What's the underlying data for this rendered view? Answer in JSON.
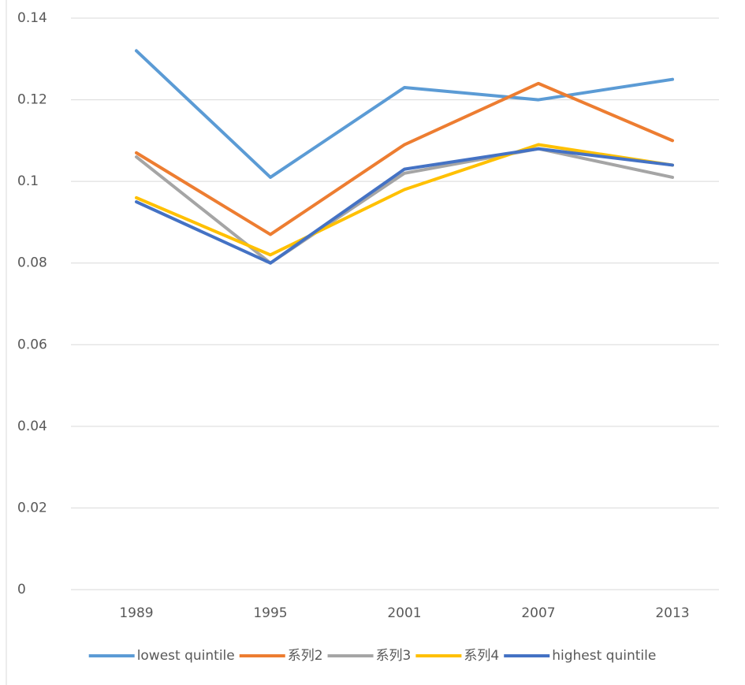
{
  "chart_data": {
    "type": "line",
    "categories": [
      "1989",
      "1995",
      "2001",
      "2007",
      "2013"
    ],
    "series": [
      {
        "name": "lowest quintile",
        "color": "#5b9bd5",
        "values": [
          0.132,
          0.101,
          0.123,
          0.12,
          0.125
        ]
      },
      {
        "name": "系列2",
        "color": "#ed7d31",
        "values": [
          0.107,
          0.087,
          0.109,
          0.124,
          0.11
        ]
      },
      {
        "name": "系列3",
        "color": "#a5a5a5",
        "values": [
          0.106,
          0.08,
          0.102,
          0.108,
          0.101
        ]
      },
      {
        "name": "系列4",
        "color": "#ffc000",
        "values": [
          0.096,
          0.082,
          0.098,
          0.109,
          0.104
        ]
      },
      {
        "name": "highest quintile",
        "color": "#4472c4",
        "values": [
          0.095,
          0.08,
          0.103,
          0.108,
          0.104
        ]
      }
    ],
    "ylim": [
      0,
      0.14
    ],
    "yticks": [
      0,
      0.02,
      0.04,
      0.06,
      0.08,
      0.1,
      0.12,
      0.14
    ],
    "grid": true,
    "legend": "bottom"
  }
}
